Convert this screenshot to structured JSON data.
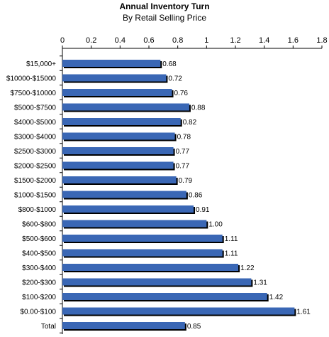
{
  "chart_data": {
    "type": "bar",
    "orientation": "horizontal",
    "title": "Annual Inventory Turn",
    "subtitle": "By Retail Selling Price",
    "xlabel": "",
    "ylabel": "",
    "xlim": [
      0,
      1.8
    ],
    "x_ticks": [
      "0",
      "0.2",
      "0.4",
      "0.6",
      "0.8",
      "1",
      "1.2",
      "1.4",
      "1.6",
      "1.8"
    ],
    "x_tick_values": [
      0,
      0.2,
      0.4,
      0.6,
      0.8,
      1.0,
      1.2,
      1.4,
      1.6,
      1.8
    ],
    "x_axis_position": "top",
    "grid": false,
    "legend": "none",
    "bar_color": "#3A67B5",
    "bar_shadow_color": "#000000",
    "categories": [
      "$15,000+",
      "$10000-$15000",
      "$7500-$10000",
      "$5000-$7500",
      "$4000-$5000",
      "$3000-$4000",
      "$2500-$3000",
      "$2000-$2500",
      "$1500-$2000",
      "$1000-$1500",
      "$800-$1000",
      "$600-$800",
      "$500-$600",
      "$400-$500",
      "$300-$400",
      "$200-$300",
      "$100-$200",
      "$0.00-$100",
      "Total"
    ],
    "values": [
      0.68,
      0.72,
      0.76,
      0.88,
      0.82,
      0.78,
      0.77,
      0.77,
      0.79,
      0.86,
      0.91,
      1.0,
      1.11,
      1.11,
      1.22,
      1.31,
      1.42,
      1.61,
      0.85
    ],
    "value_labels": [
      "0.68",
      "0.72",
      "0.76",
      "0.88",
      "0.82",
      "0.78",
      "0.77",
      "0.77",
      "0.79",
      "0.86",
      "0.91",
      "1.00",
      "1.11",
      "1.11",
      "1.22",
      "1.31",
      "1.42",
      "1.61",
      "0.85"
    ]
  }
}
